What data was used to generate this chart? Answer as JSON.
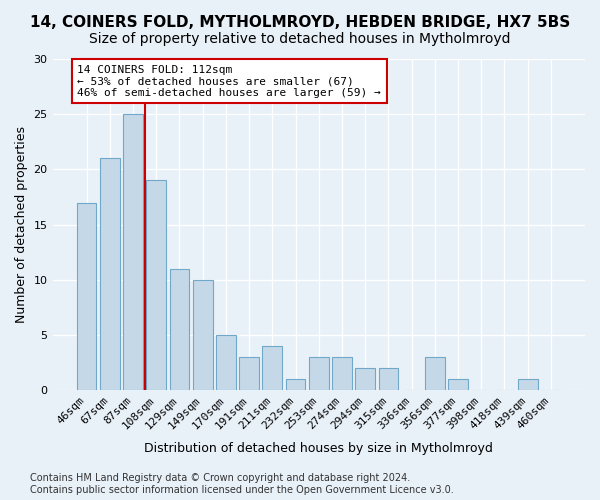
{
  "title": "14, COINERS FOLD, MYTHOLMROYD, HEBDEN BRIDGE, HX7 5BS",
  "subtitle": "Size of property relative to detached houses in Mytholmroyd",
  "xlabel": "Distribution of detached houses by size in Mytholmroyd",
  "ylabel": "Number of detached properties",
  "categories": [
    "46sqm",
    "67sqm",
    "87sqm",
    "108sqm",
    "129sqm",
    "149sqm",
    "170sqm",
    "191sqm",
    "211sqm",
    "232sqm",
    "253sqm",
    "274sqm",
    "294sqm",
    "315sqm",
    "336sqm",
    "356sqm",
    "377sqm",
    "398sqm",
    "418sqm",
    "439sqm",
    "460sqm"
  ],
  "values": [
    17,
    21,
    25,
    19,
    11,
    10,
    5,
    3,
    4,
    1,
    3,
    3,
    2,
    2,
    0,
    3,
    1,
    0,
    0,
    1,
    0
  ],
  "bar_color": "#c5d8e8",
  "bar_edge_color": "#6fa8c8",
  "background_color": "#e8f0f8",
  "grid_color": "#ffffff",
  "annotation_box_text": "14 COINERS FOLD: 112sqm\n← 53% of detached houses are smaller (67)\n46% of semi-detached houses are larger (59) →",
  "annotation_box_color": "#ffffff",
  "annotation_box_edge_color": "#cc0000",
  "vline_x": 2.5,
  "vline_color": "#cc0000",
  "ylim": [
    0,
    30
  ],
  "yticks": [
    0,
    5,
    10,
    15,
    20,
    25,
    30
  ],
  "footnote": "Contains HM Land Registry data © Crown copyright and database right 2024.\nContains public sector information licensed under the Open Government Licence v3.0.",
  "title_fontsize": 11,
  "subtitle_fontsize": 10,
  "xlabel_fontsize": 9,
  "ylabel_fontsize": 9,
  "tick_fontsize": 8,
  "annotation_fontsize": 8,
  "footnote_fontsize": 7
}
